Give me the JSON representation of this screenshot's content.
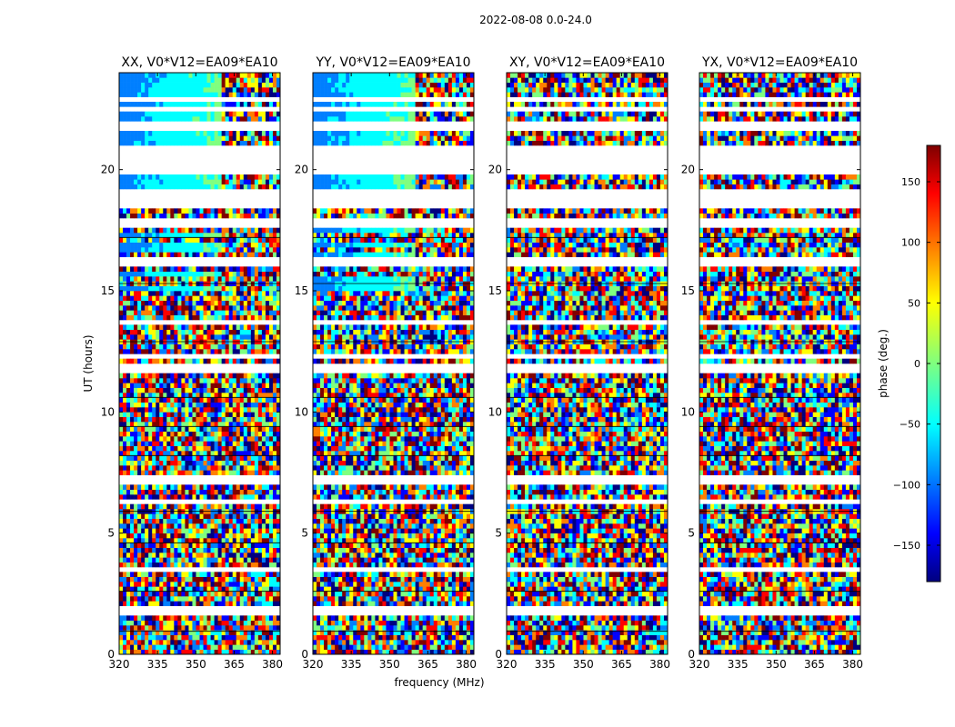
{
  "chart_data": {
    "type": "heatmap",
    "title": "2022-08-08 0.0-24.0",
    "xlabel": "frequency (MHz)",
    "ylabel": "UT (hours)",
    "xlim": [
      320,
      383
    ],
    "ylim": [
      0,
      24
    ],
    "xticks": [
      320,
      335,
      350,
      365,
      380
    ],
    "yticks": [
      0,
      5,
      10,
      15,
      20
    ],
    "colorbar": {
      "label": "phase (deg.)",
      "range": [
        -180,
        180
      ],
      "ticks": [
        -150,
        -100,
        -50,
        0,
        50,
        100,
        150
      ],
      "tick_labels": [
        "−150",
        "−100",
        "−50",
        "0",
        "50",
        "100",
        "150"
      ],
      "colormap": [
        "#00007f",
        "#0000ff",
        "#007fff",
        "#00ffff",
        "#7fff7f",
        "#ffff00",
        "#ff7f00",
        "#ff0000",
        "#7f0000"
      ]
    },
    "panels": [
      {
        "title": "XX, V0*V12=EA09*EA10",
        "pol": "XX"
      },
      {
        "title": "YY, V0*V12=EA09*EA10",
        "pol": "YY"
      },
      {
        "title": "XY, V0*V12=EA09*EA10",
        "pol": "XY"
      },
      {
        "title": "YX, V0*V12=EA09*EA10",
        "pol": "YX"
      }
    ],
    "flagged_ut_ranges": [
      [
        1.7,
        2.0
      ],
      [
        3.5,
        3.6
      ],
      [
        6.2,
        6.4
      ],
      [
        7.1,
        7.3
      ],
      [
        11.7,
        11.9
      ],
      [
        12.2,
        12.4
      ],
      [
        13.7,
        13.9
      ],
      [
        16.0,
        16.4
      ],
      [
        17.7,
        17.9
      ],
      [
        18.5,
        19.2
      ],
      [
        19.9,
        21.0
      ],
      [
        21.7,
        22.0
      ],
      [
        22.4,
        22.6
      ],
      [
        22.9,
        23.0
      ]
    ]
  }
}
